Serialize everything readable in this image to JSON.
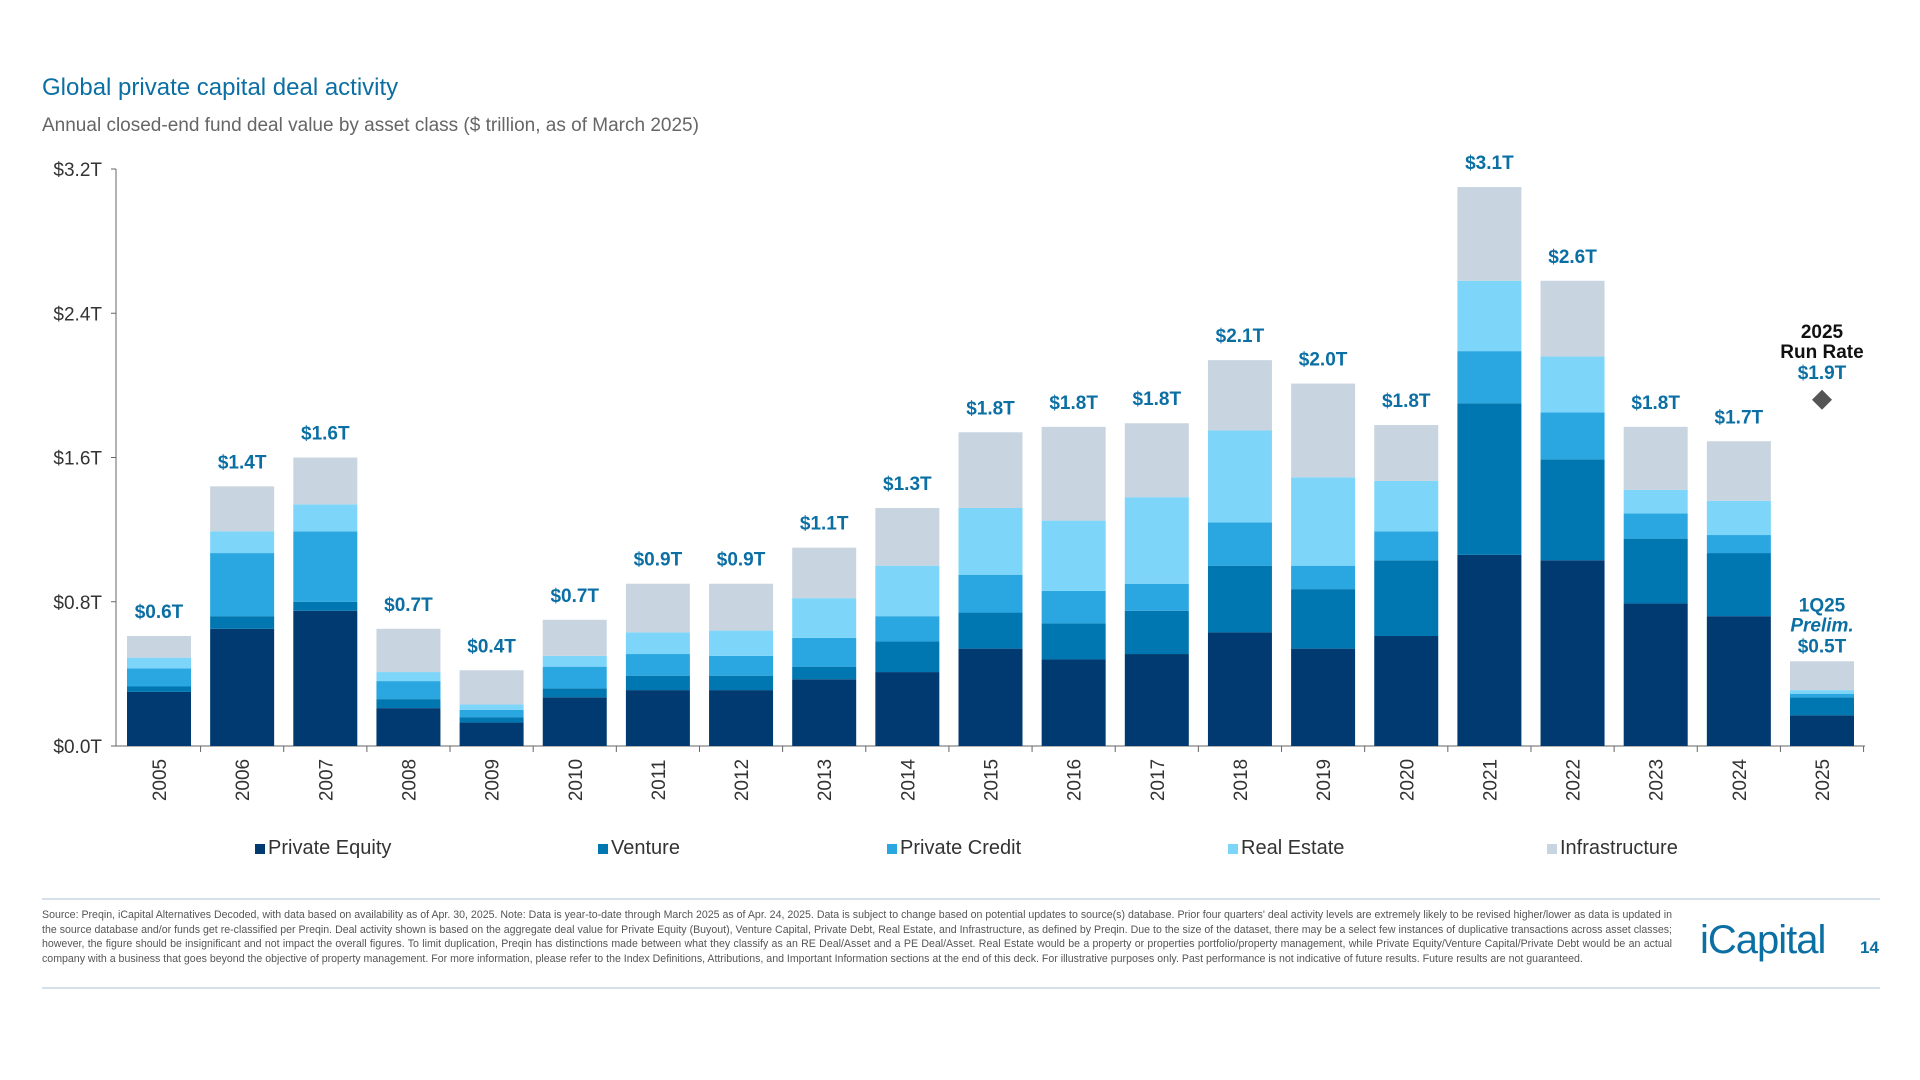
{
  "header": {
    "title": "Global private capital deal activity",
    "subtitle": "Annual closed-end fund deal value by asset class ($ trillion, as of March 2025)"
  },
  "chart_data": {
    "type": "bar",
    "stacked": true,
    "categories": [
      "2005",
      "2006",
      "2007",
      "2008",
      "2009",
      "2010",
      "2011",
      "2012",
      "2013",
      "2014",
      "2015",
      "2016",
      "2017",
      "2018",
      "2019",
      "2020",
      "2021",
      "2022",
      "2023",
      "2024",
      "2025"
    ],
    "series": [
      {
        "name": "Private Equity",
        "color": "#003a70",
        "values": [
          0.3,
          0.65,
          0.75,
          0.21,
          0.13,
          0.27,
          0.31,
          0.31,
          0.37,
          0.41,
          0.54,
          0.48,
          0.51,
          0.63,
          0.54,
          0.61,
          1.06,
          1.03,
          0.79,
          0.72,
          0.17
        ]
      },
      {
        "name": "Venture",
        "color": "#0077b0",
        "values": [
          0.03,
          0.07,
          0.05,
          0.05,
          0.03,
          0.05,
          0.08,
          0.08,
          0.07,
          0.17,
          0.2,
          0.2,
          0.24,
          0.37,
          0.33,
          0.42,
          0.84,
          0.56,
          0.36,
          0.35,
          0.1
        ]
      },
      {
        "name": "Private Credit",
        "color": "#2aa7e0",
        "values": [
          0.1,
          0.35,
          0.39,
          0.1,
          0.04,
          0.12,
          0.12,
          0.11,
          0.16,
          0.14,
          0.21,
          0.18,
          0.15,
          0.24,
          0.13,
          0.16,
          0.29,
          0.26,
          0.14,
          0.1,
          0.02
        ]
      },
      {
        "name": "Real Estate",
        "color": "#7dd6f9",
        "values": [
          0.06,
          0.12,
          0.15,
          0.05,
          0.03,
          0.06,
          0.12,
          0.14,
          0.22,
          0.28,
          0.37,
          0.39,
          0.48,
          0.51,
          0.49,
          0.28,
          0.39,
          0.31,
          0.13,
          0.19,
          0.02
        ]
      },
      {
        "name": "Infrastructure",
        "color": "#c8d5e0",
        "values": [
          0.12,
          0.25,
          0.26,
          0.24,
          0.19,
          0.2,
          0.27,
          0.26,
          0.28,
          0.32,
          0.42,
          0.52,
          0.41,
          0.39,
          0.52,
          0.31,
          0.52,
          0.42,
          0.35,
          0.33,
          0.16
        ]
      }
    ],
    "total_labels": [
      "$0.6T",
      "$1.4T",
      "$1.6T",
      "$0.7T",
      "$0.4T",
      "$0.7T",
      "$0.9T",
      "$0.9T",
      "$1.1T",
      "$1.3T",
      "$1.8T",
      "$1.8T",
      "$1.8T",
      "$2.1T",
      "$2.0T",
      "$1.8T",
      "$3.1T",
      "$2.6T",
      "$1.8T",
      "$1.7T"
    ],
    "last_bar_label": [
      "1Q25",
      "Prelim.",
      "$0.5T"
    ],
    "run_rate": {
      "value": 1.92,
      "label": [
        "2025",
        "Run Rate",
        "$1.9T"
      ],
      "marker": "diamond",
      "color": "#555555"
    },
    "yticks": [
      0,
      0.8,
      1.6,
      2.4,
      3.2
    ],
    "ytick_labels": [
      "$0.0T",
      "$0.8T",
      "$1.6T",
      "$2.4T",
      "$3.2T"
    ],
    "ylim": [
      0,
      3.2
    ],
    "grid": false,
    "legend_placement": "bottom",
    "label_color": "#0b6fa4"
  },
  "footer": {
    "note": "Source: Preqin, iCapital Alternatives Decoded, with data based on availability as of Apr. 30, 2025. Note: Data is year-to-date through March 2025 as of Apr. 24, 2025. Data is subject to change based on potential updates to source(s) database. Prior four quarters' deal activity levels are extremely likely to be revised higher/lower as data is updated in the source database and/or funds get re-classified per Preqin. Deal activity shown is based on the aggregate deal value for Private Equity (Buyout), Venture Capital, Private Debt, Real Estate, and Infrastructure, as defined by Preqin. Due to the size of the dataset, there may be a select few instances of duplicative transactions across asset classes; however, the figure should be insignificant and not impact the overall figures. To limit duplication, Preqin has distinctions made between what they classify as an RE Deal/Asset and a PE Deal/Asset. Real Estate would be a property or properties portfolio/property management, while Private Equity/Venture Capital/Private Debt would be an actual company with a business that goes beyond the objective of property management. For more information, please refer to the Index Definitions, Attributions, and Important Information sections at the end of this deck. For illustrative purposes only. Past performance is not indicative of future results. Future results are not guaranteed.",
    "logo": "iCapital",
    "page_number": "14"
  }
}
